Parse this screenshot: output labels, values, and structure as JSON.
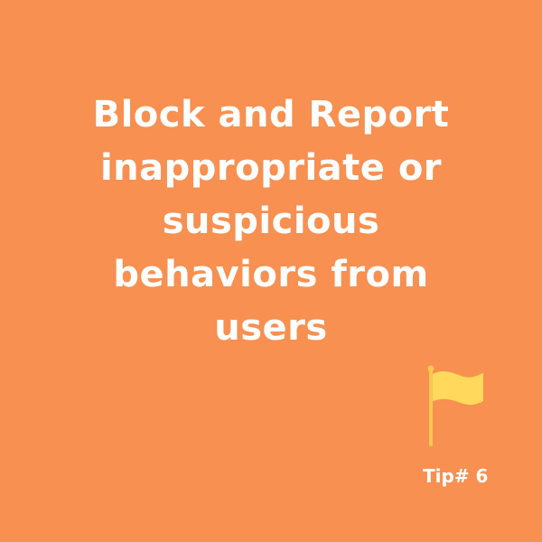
{
  "card": {
    "background_color": "#F79050",
    "text_color": "#FFFFFF",
    "headline_lines": [
      "Block and Report",
      "inappropriate or",
      "suspicious",
      "behaviors from",
      "users"
    ],
    "flag_icon": {
      "name": "flag-icon",
      "color": "#FFD85C",
      "pole_color": "#F5C84E"
    },
    "tip_label": "Tip# 6"
  }
}
